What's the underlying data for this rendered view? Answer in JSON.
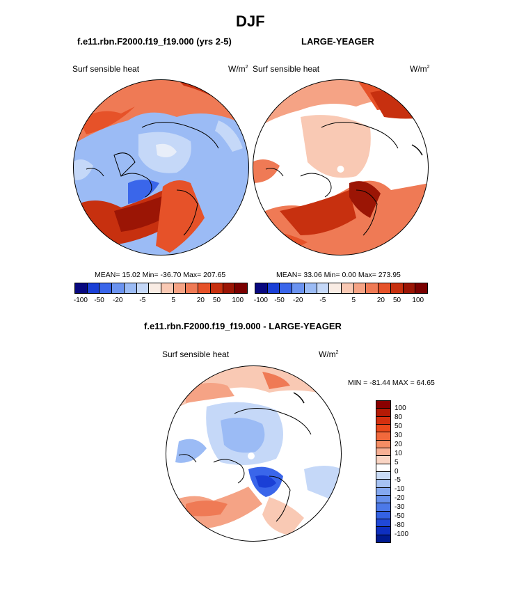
{
  "title": "DJF",
  "panels": [
    {
      "case": "f.e11.rbn.F2000.f19_f19.000 (yrs 2-5)",
      "variable": "Surf sensible heat",
      "units_base": "W/m",
      "units_exp": "2",
      "mean": "15.02",
      "min": "-36.70",
      "max": "207.65",
      "stats_line": "MEAN=  15.02  Min= -36.70   Max= 207.65"
    },
    {
      "case": "LARGE-YEAGER",
      "variable": "Surf sensible heat",
      "units_base": "W/m",
      "units_exp": "2",
      "mean": "33.06",
      "min": "0.00",
      "max": "273.95",
      "stats_line": "MEAN=  33.06  Min=   0.00   Max= 273.95"
    }
  ],
  "diff_panel": {
    "case": "f.e11.rbn.F2000.f19_f19.000 - LARGE-YEAGER",
    "variable": "Surf sensible heat",
    "units_base": "W/m",
    "units_exp": "2",
    "min": "-81.44",
    "max": "64.65",
    "stats_line": "MIN = -81.44 MAX =  64.65"
  },
  "horizontal_colorbar": {
    "colors": [
      "#08087f",
      "#1a3fd6",
      "#3a66ea",
      "#6b93f0",
      "#9bbbf5",
      "#c5d8f8",
      "#f9ece4",
      "#f9c9b4",
      "#f5a385",
      "#ef7a55",
      "#e65229",
      "#c7300f",
      "#9b1505",
      "#7a0000"
    ],
    "tick_labels": [
      "-100",
      "-50",
      "-20",
      "-5",
      "5",
      "20",
      "50",
      "100"
    ]
  },
  "vertical_colorbar": {
    "colors": [
      "#8a0000",
      "#b51a05",
      "#d5300f",
      "#ec4a1c",
      "#f2693c",
      "#f58d64",
      "#f7b094",
      "#fad5c4",
      "#ffffff",
      "#c9dbf6",
      "#a6c2f3",
      "#84a8f0",
      "#6690ec",
      "#4c79e8",
      "#3462e4",
      "#2048d8",
      "#0e2fc0",
      "#001a90"
    ],
    "tick_labels": [
      "100",
      "80",
      "50",
      "30",
      "20",
      "10",
      "5",
      "0",
      "-5",
      "-10",
      "-20",
      "-30",
      "-50",
      "-80",
      "-100"
    ]
  },
  "icons": {
    "north_pole_marker": "white-dot"
  }
}
